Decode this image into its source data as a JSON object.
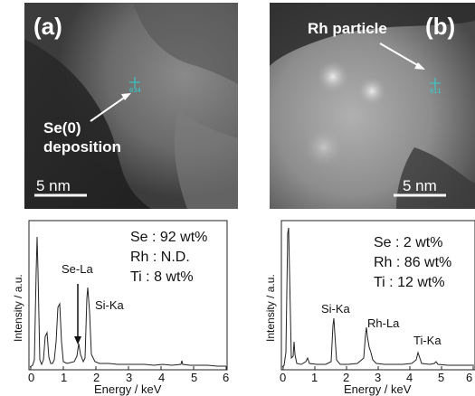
{
  "panels": {
    "a": {
      "label": "(a)",
      "annotation_line1": "Se(0)",
      "annotation_line2": "deposition",
      "marker_id": "034",
      "scale": "5 nm",
      "composition": [
        "Se : 92 wt%",
        "Rh : N.D.",
        "Ti : 8 wt%"
      ],
      "ylabel": "Intensity / a.u.",
      "xlabel": "Energy / keV",
      "xticks": [
        "0",
        "1",
        "2",
        "3",
        "4",
        "5",
        "6"
      ],
      "peaks": [
        "Se-La",
        "Si-Ka"
      ]
    },
    "b": {
      "label": "(b)",
      "annotation": "Rh particle",
      "marker_id": "011",
      "scale": "5 nm",
      "composition": [
        "Se : 2 wt%",
        "Rh : 86 wt%",
        "Ti : 12 wt%"
      ],
      "ylabel": "Intensity / a.u.",
      "xlabel": "Energy / keV",
      "xticks": [
        "0",
        "1",
        "2",
        "3",
        "4",
        "5",
        "6"
      ],
      "peaks": [
        "Si-Ka",
        "Rh-La",
        "Ti-Ka"
      ]
    }
  }
}
